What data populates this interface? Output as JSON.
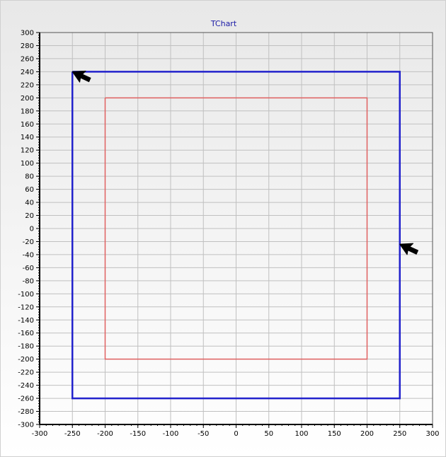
{
  "chart_data": {
    "type": "line",
    "title": "TChart",
    "xlabel": "",
    "ylabel": "",
    "xlim": [
      -300,
      300
    ],
    "ylim": [
      -300,
      300
    ],
    "x_ticks": [
      -300,
      -250,
      -200,
      -150,
      -100,
      -50,
      0,
      50,
      100,
      150,
      200,
      250,
      300
    ],
    "y_ticks": [
      -300,
      -280,
      -260,
      -240,
      -220,
      -200,
      -180,
      -160,
      -140,
      -120,
      -100,
      -80,
      -60,
      -40,
      -20,
      0,
      20,
      40,
      60,
      80,
      100,
      120,
      140,
      160,
      180,
      200,
      220,
      240,
      260,
      280,
      300
    ],
    "grid": true,
    "series": [
      {
        "color": "#2222cc",
        "points": [
          [
            -250,
            240
          ],
          [
            250,
            240
          ],
          [
            250,
            -260
          ],
          [
            -250,
            -260
          ],
          [
            -250,
            240
          ]
        ]
      },
      {
        "color": "#e06060",
        "points": [
          [
            -200,
            200
          ],
          [
            200,
            200
          ],
          [
            200,
            -200
          ],
          [
            -200,
            -200
          ],
          [
            -200,
            200
          ]
        ]
      }
    ],
    "cursors": [
      {
        "icon": "mouse-pointer-icon",
        "x": -250,
        "y": 240
      },
      {
        "icon": "mouse-pointer-icon",
        "x": 250,
        "y": -24
      }
    ]
  },
  "colors": {
    "title": "#1a1aa6",
    "axis": "#000000",
    "grid": "#c0c0c0",
    "background_top": "#e8e8e8",
    "background_bottom": "#ffffff"
  }
}
